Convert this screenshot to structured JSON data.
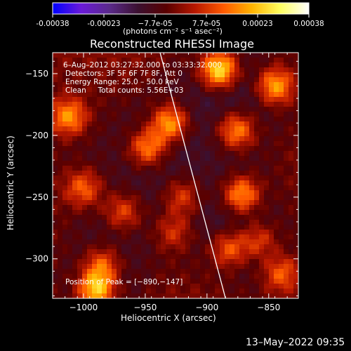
{
  "colorbar": {
    "tick_labels": [
      "-0.00038",
      "-0.00023",
      "−7.7e-05",
      "7.7e-05",
      "0.00023",
      "0.00038"
    ],
    "unit_label": "(photons cm⁻² s⁻¹ asec⁻²)",
    "colors": [
      "#0000ff",
      "#6a1ad8",
      "#5a2a8a",
      "#3b1030",
      "#5a0000",
      "#b81800",
      "#ff5a00",
      "#ffb400",
      "#ffff60",
      "#ffffff"
    ]
  },
  "title": "Reconstructed RHESSI Image",
  "annotations": {
    "time_range": "6–Aug–2012 03:27:32.000 to 03:33:32.000",
    "detectors": "Detectors: 3F 5F 6F 7F 8F, Att 0",
    "energy": "Energy Range: 25.0 – 50.0 keV",
    "method": "Clean     Total counts: 5.56E+03",
    "peak": "Position of Peak = [−890,−147]"
  },
  "footer": {
    "timestamp": "13–May–2022 09:35"
  },
  "chart_data": {
    "type": "heatmap",
    "title": "Reconstructed RHESSI Image",
    "xlabel": "Heliocentric X (arcsec)",
    "ylabel": "Heliocentric Y (arcsec)",
    "xlim": [
      -1025,
      -826
    ],
    "ylim": [
      -332,
      -133
    ],
    "x_ticks": [
      -1000,
      -950,
      -900,
      -850
    ],
    "y_ticks": [
      -150,
      -200,
      -250,
      -300
    ],
    "x_tick_labels": [
      "−1000",
      "−950",
      "−900",
      "−850"
    ],
    "y_tick_labels": [
      "−150",
      "−200",
      "−250",
      "−300"
    ],
    "value_range": [
      -0.00038,
      0.00038
    ],
    "peak": [
      -890,
      -147
    ],
    "limb_line": [
      [
        -938,
        -133
      ],
      [
        -885,
        -332
      ]
    ],
    "sources": [
      {
        "x": -1012,
        "y": -185,
        "amp": 0.00025
      },
      {
        "x": -1000,
        "y": -243,
        "amp": 0.0002
      },
      {
        "x": -968,
        "y": -262,
        "amp": 0.00018
      },
      {
        "x": -948,
        "y": -210,
        "amp": 0.00026
      },
      {
        "x": -930,
        "y": -190,
        "amp": 0.0003
      },
      {
        "x": -920,
        "y": -250,
        "amp": 0.00017
      },
      {
        "x": -890,
        "y": -147,
        "amp": 0.00038
      },
      {
        "x": -876,
        "y": -196,
        "amp": 0.00026
      },
      {
        "x": -872,
        "y": -248,
        "amp": 0.00028
      },
      {
        "x": -845,
        "y": -160,
        "amp": 0.00029
      },
      {
        "x": -858,
        "y": -285,
        "amp": 0.00018
      },
      {
        "x": -985,
        "y": -305,
        "amp": 0.00022
      },
      {
        "x": -990,
        "y": -325,
        "amp": 0.00034
      },
      {
        "x": -882,
        "y": -292,
        "amp": 0.00021
      },
      {
        "x": -927,
        "y": -278,
        "amp": 0.00015
      },
      {
        "x": -840,
        "y": -312,
        "amp": 0.0002
      }
    ]
  }
}
